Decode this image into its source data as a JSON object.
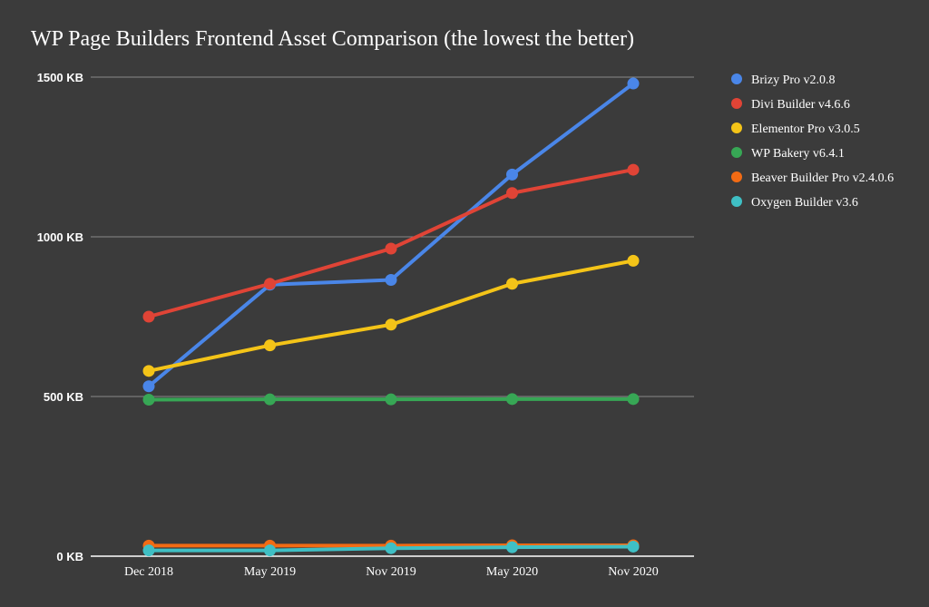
{
  "chart_data": {
    "type": "line",
    "title": "WP Page Builders Frontend Asset Comparison (the lowest the better)",
    "xlabel": "",
    "ylabel": "",
    "categories": [
      "Dec 2018",
      "May 2019",
      "Nov 2019",
      "May 2020",
      "Nov 2020"
    ],
    "ylim": [
      0,
      1500
    ],
    "yticks": [
      {
        "value": 0,
        "label": "0 KB"
      },
      {
        "value": 500,
        "label": "500 KB"
      },
      {
        "value": 1000,
        "label": "1000 KB"
      },
      {
        "value": 1500,
        "label": "1500 KB"
      }
    ],
    "grid": true,
    "legend_position": "right",
    "series": [
      {
        "name": "Brizy Pro v2.0.8",
        "color": "#4a86e8",
        "values": [
          532,
          850,
          865,
          1195,
          1480
        ]
      },
      {
        "name": "Divi Builder v4.6.6",
        "color": "#e04436",
        "values": [
          750,
          853,
          963,
          1137,
          1210
        ]
      },
      {
        "name": "Elementor Pro v3.0.5",
        "color": "#f4c418",
        "values": [
          580,
          660,
          725,
          853,
          925
        ]
      },
      {
        "name": "WP Bakery v6.4.1",
        "color": "#37a755",
        "values": [
          490,
          491,
          491,
          492,
          492
        ]
      },
      {
        "name": "Beaver Builder Pro v2.4.0.6",
        "color": "#f26b14",
        "values": [
          33,
          33,
          33,
          34,
          34
        ]
      },
      {
        "name": "Oxygen Builder v3.6",
        "color": "#3fbfc4",
        "values": [
          18,
          18,
          25,
          28,
          30
        ]
      }
    ]
  }
}
